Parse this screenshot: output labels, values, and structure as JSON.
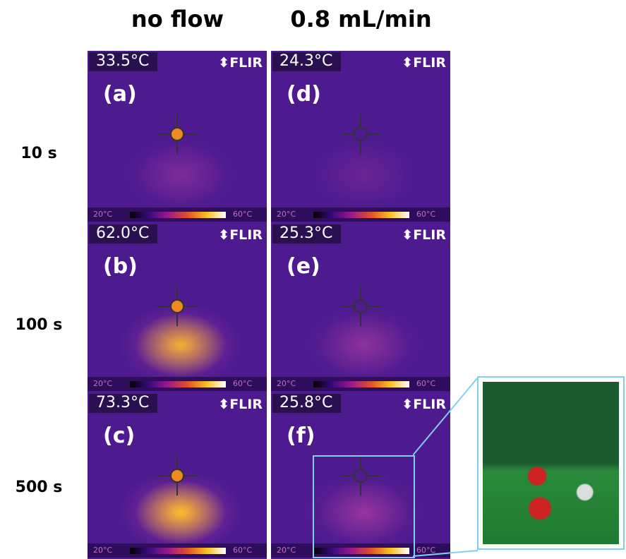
{
  "header": {
    "columns": [
      "no  flow",
      "0.8 mL/min"
    ]
  },
  "rows": [
    "10 s",
    "100 s",
    "500 s"
  ],
  "panels": [
    {
      "letter": "(a)",
      "temperature": "33.5°C"
    },
    {
      "letter": "(d)",
      "temperature": "24.3°C"
    },
    {
      "letter": "(b)",
      "temperature": "62.0°C"
    },
    {
      "letter": "(e)",
      "temperature": "25.3°C"
    },
    {
      "letter": "(c)",
      "temperature": "73.3°C"
    },
    {
      "letter": "(f)",
      "temperature": "25.8°C"
    }
  ],
  "brand": "FLIR",
  "scale": {
    "min": "20°C",
    "max": "60°C"
  }
}
